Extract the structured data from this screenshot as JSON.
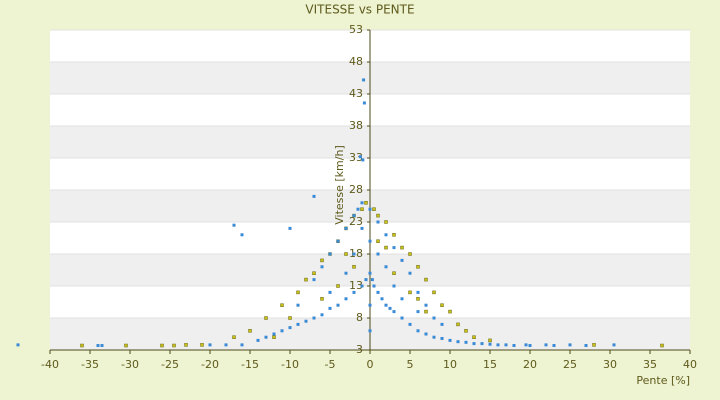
{
  "chart_data": {
    "type": "scatter",
    "title": "VITESSE vs PENTE",
    "x_label": "Pente [%]",
    "y_label": "Vitesse [km/h]",
    "xlim": [
      -40,
      40
    ],
    "xticks": [
      -40,
      -35,
      -30,
      -25,
      -20,
      -15,
      -10,
      -5,
      0,
      5,
      10,
      15,
      20,
      25,
      30,
      35,
      40
    ],
    "ylim": [
      3,
      53
    ],
    "yticks": [
      3,
      8,
      13,
      18,
      23,
      28,
      33,
      38,
      43,
      48,
      53
    ],
    "grid": true,
    "series": [
      {
        "color": "#c9c01a",
        "x": [
          -36,
          -30.5,
          -26,
          -24.5,
          -23,
          -21,
          -17,
          -15,
          -13,
          -11,
          -9,
          -8,
          -7,
          -6,
          -5,
          -4,
          -3,
          -2,
          -1,
          -0.5,
          0.5,
          1,
          2,
          3,
          4,
          5,
          6,
          7,
          8,
          9,
          10,
          11,
          12,
          13,
          15,
          -10,
          -6,
          -4,
          -2,
          1,
          3,
          5,
          7,
          36.5,
          28,
          -12,
          -3,
          2,
          6
        ],
        "values": [
          3.7,
          3.7,
          3.7,
          3.7,
          3.8,
          3.8,
          5,
          6,
          8,
          10,
          12,
          14,
          15,
          17,
          18,
          20,
          22,
          24,
          25,
          26,
          25,
          24,
          23,
          21,
          19,
          18,
          16,
          14,
          12,
          10,
          9,
          7,
          6,
          5,
          4.5,
          8,
          11,
          13,
          16,
          20,
          15,
          12,
          9,
          3.7,
          3.8,
          5,
          18,
          19,
          11
        ]
      },
      {
        "color": "#3a8ad6",
        "x": [
          -44,
          -34,
          -33.5,
          -20,
          -18,
          -16,
          19.5,
          20,
          22,
          23,
          25,
          27,
          30.5,
          -0.8,
          -0.7,
          -1.2,
          -0.9,
          -17,
          -16,
          -10,
          -7,
          -14,
          -13,
          -12,
          -11,
          -10,
          -9,
          -8,
          -7,
          -6,
          -5,
          -4,
          -3,
          -2,
          -1,
          -0.5,
          0,
          0.3,
          0.5,
          1,
          1.5,
          2,
          2.5,
          3,
          4,
          5,
          6,
          7,
          8,
          9,
          10,
          11,
          12,
          13,
          14,
          15,
          16,
          17,
          18,
          -9,
          -7,
          -6,
          -5,
          -4,
          -3,
          -2,
          -1.5,
          -1,
          0,
          0,
          0,
          0,
          1,
          2,
          3,
          4,
          5,
          6,
          7,
          8,
          9,
          -5,
          -3,
          -2,
          -1,
          1,
          2,
          3,
          4,
          6
        ],
        "values": [
          3.8,
          3.7,
          3.7,
          3.8,
          3.8,
          3.8,
          3.8,
          3.7,
          3.8,
          3.7,
          3.8,
          3.7,
          3.8,
          45.2,
          41.6,
          33.2,
          32.7,
          22.5,
          21,
          22,
          27,
          4.5,
          5,
          5.5,
          6,
          6.5,
          7,
          7.5,
          8,
          8.5,
          9.5,
          10,
          11,
          12,
          13,
          14,
          15,
          14,
          13,
          12,
          11,
          10,
          9.5,
          9,
          8,
          7,
          6,
          5.5,
          5,
          4.8,
          4.5,
          4.3,
          4.2,
          4,
          4,
          3.9,
          3.8,
          3.8,
          3.7,
          10,
          14,
          16,
          18,
          20,
          22,
          24,
          25,
          26,
          20,
          10,
          6,
          25,
          23,
          21,
          19,
          17,
          15,
          12,
          10,
          8,
          7,
          12,
          15,
          18,
          22,
          18,
          16,
          13,
          11,
          9
        ]
      }
    ]
  }
}
